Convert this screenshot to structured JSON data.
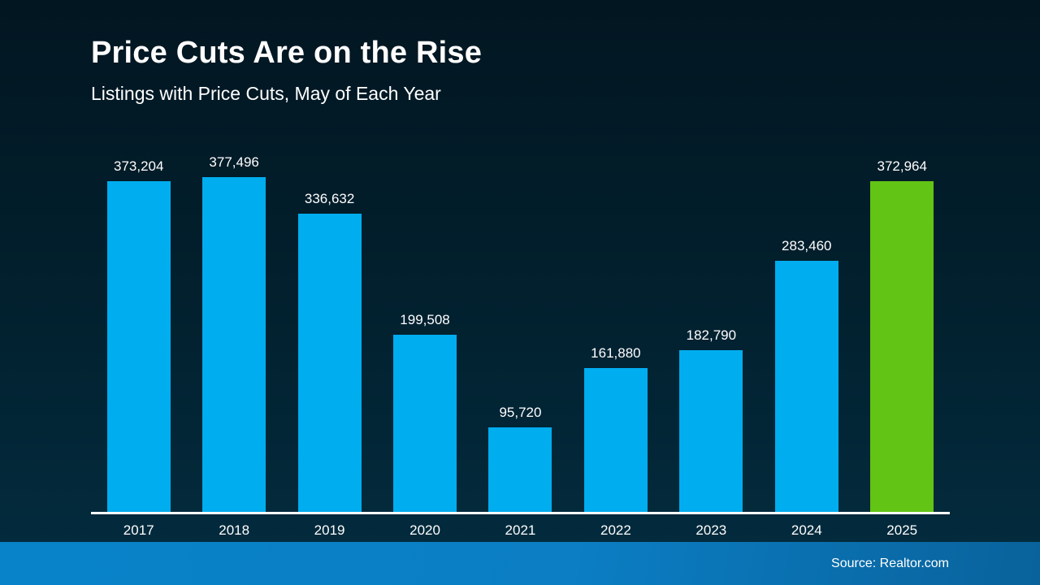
{
  "header": {
    "title": "Price Cuts Are on the Rise",
    "subtitle": "Listings with Price Cuts, May of Each Year"
  },
  "footer": {
    "source_label": "Source: Realtor.com"
  },
  "colors": {
    "background_top": "#021621",
    "background_bottom": "#032c3e",
    "bar_blue": "#00adef",
    "bar_green": "#62c414",
    "axis_line": "#ffffff",
    "text": "#ffffff",
    "footer_gradient_left": "#0883c9",
    "footer_gradient_right": "#09629b"
  },
  "chart_data": {
    "type": "bar",
    "title": "Price Cuts Are on the Rise",
    "subtitle": "Listings with Price Cuts, May of Each Year",
    "categories": [
      "2017",
      "2018",
      "2019",
      "2020",
      "2021",
      "2022",
      "2023",
      "2024",
      "2025"
    ],
    "values": [
      373204,
      377496,
      336632,
      199508,
      95720,
      161880,
      182790,
      283460,
      372964
    ],
    "value_labels": [
      "373,204",
      "377,496",
      "336,632",
      "199,508",
      "95,720",
      "161,880",
      "182,790",
      "283,460",
      "372,964"
    ],
    "xlabel": "",
    "ylabel": "",
    "ylim": [
      0,
      377496
    ],
    "gridlines": false,
    "legend_position": "none",
    "bar_color": "#00adef",
    "highlight_color": "#62c414",
    "highlight_index": 8,
    "source": "Source: Realtor.com"
  }
}
